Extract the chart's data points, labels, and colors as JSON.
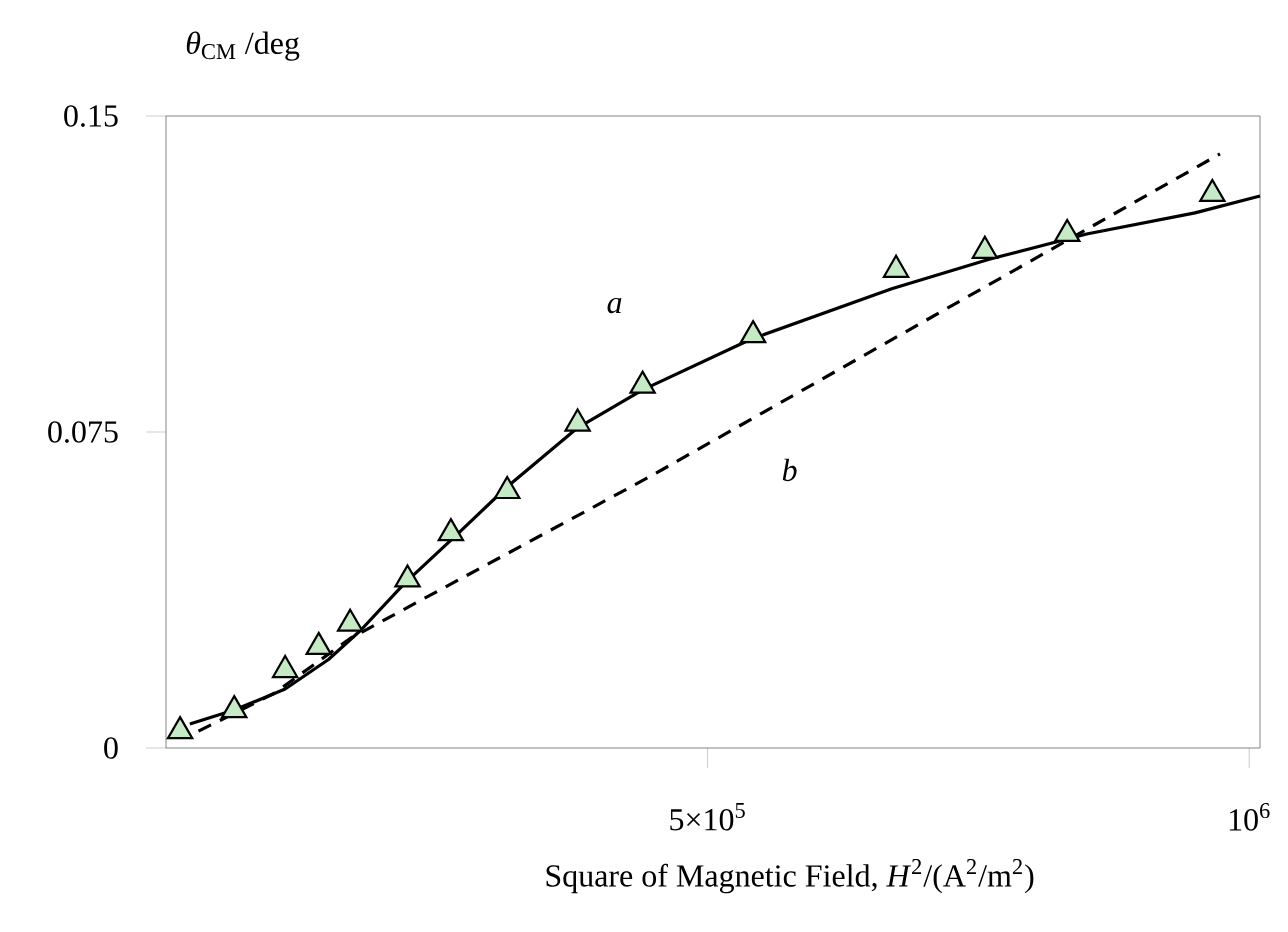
{
  "chart_data": {
    "type": "scatter",
    "xlabel": "Square of Magnetic Field, *H*$^{2}$/(A$^{2}$/m$^{2}$)",
    "ylabel": "*θ*$_{CM}$ /deg",
    "xlim": [
      0,
      1010000
    ],
    "ylim": [
      0,
      0.15
    ],
    "xticks": [
      {
        "value": 500000,
        "label": "5×10$^{5}$"
      },
      {
        "value": 1000000,
        "label": "10$^{6}$"
      }
    ],
    "yticks": [
      0,
      0.075,
      0.15
    ],
    "grid": false,
    "annotations": [
      "*a*",
      "*b*"
    ],
    "series": [
      {
        "type": "line",
        "line_style": "solid",
        "marker": "none",
        "color": "#000000",
        "x": [
          22000,
          63000,
          110000,
          150000,
          180000,
          220000,
          270000,
          315000,
          380000,
          440000,
          540000,
          670000,
          760000,
          850000,
          950000,
          1010000
        ],
        "values": [
          0.0057,
          0.009,
          0.014,
          0.021,
          0.028,
          0.039,
          0.051,
          0.062,
          0.076,
          0.085,
          0.097,
          0.109,
          0.116,
          0.122,
          0.127,
          0.131
        ]
      },
      {
        "type": "line",
        "line_style": "dashed",
        "marker": "none",
        "color": "#000000",
        "x": [
          30000,
          100000,
          170000,
          448000,
          973000
        ],
        "values": [
          0.004,
          0.013,
          0.026,
          0.0646,
          0.141
        ]
      },
      {
        "marker": "triangle",
        "color": "#c6e9c6",
        "x": [
          13000,
          63000,
          110000,
          141000,
          170000,
          223000,
          263000,
          315000,
          380000,
          440000,
          542000,
          674000,
          756000,
          832000,
          966000
        ],
        "values": [
          0.004,
          0.009,
          0.0185,
          0.024,
          0.0295,
          0.04,
          0.051,
          0.061,
          0.077,
          0.086,
          0.098,
          0.1135,
          0.118,
          0.122,
          0.1315
        ]
      }
    ]
  }
}
